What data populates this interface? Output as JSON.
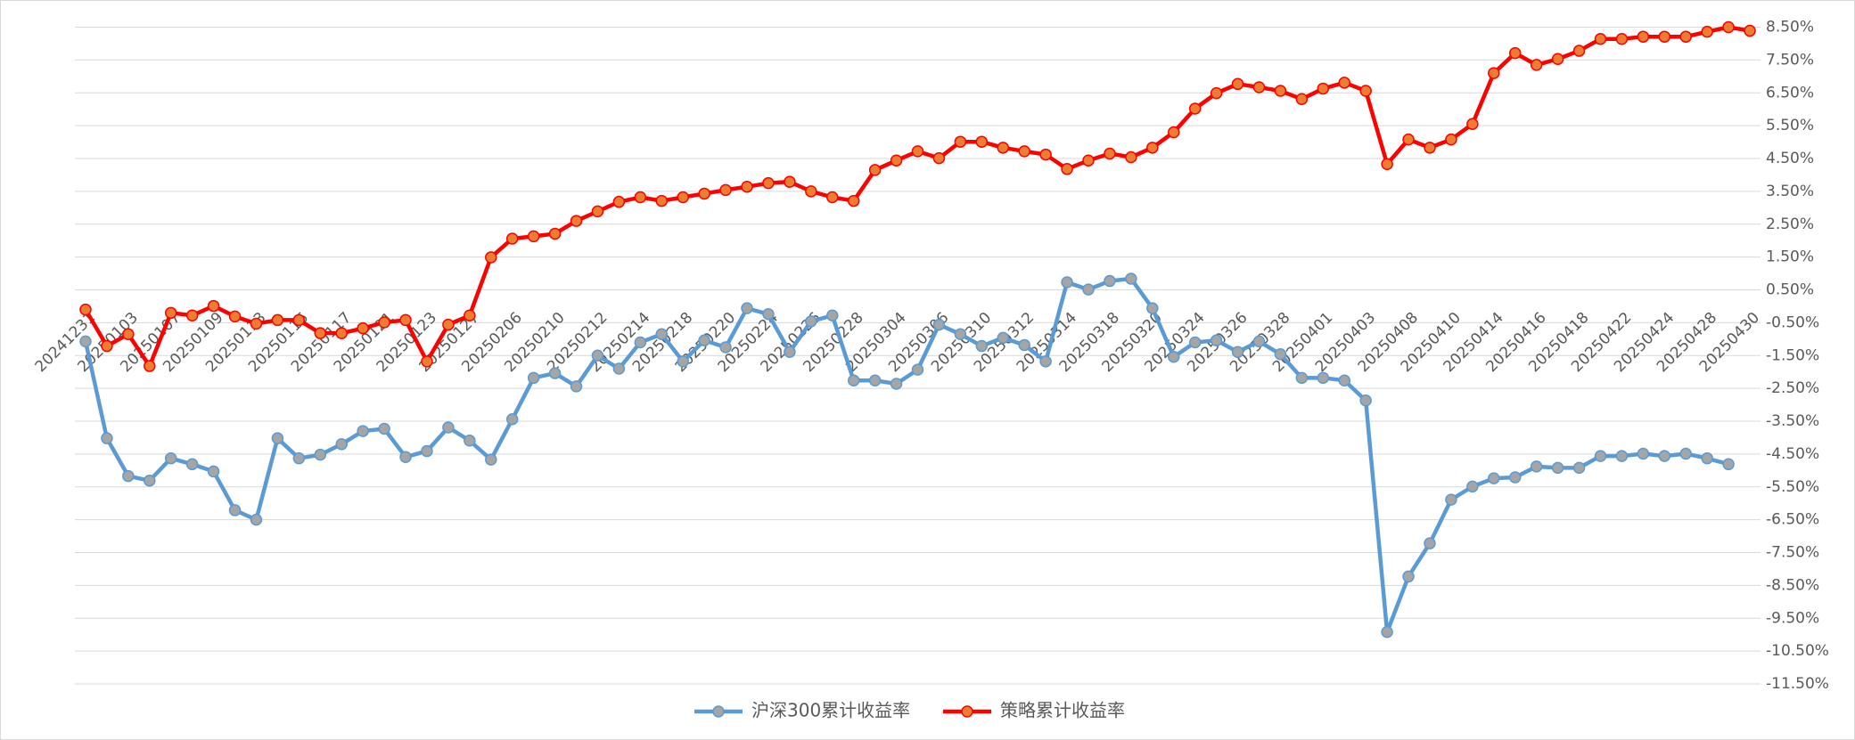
{
  "chart_data": {
    "type": "line",
    "categories": [
      "20241231",
      null,
      "20250103",
      null,
      "20250107",
      null,
      "20250109",
      null,
      "20250113",
      null,
      "20250115",
      null,
      "20250117",
      null,
      "20250121",
      null,
      "20250123",
      null,
      "20250127",
      null,
      "20250206",
      null,
      "20250210",
      null,
      "20250212",
      null,
      "20250214",
      null,
      "20250218",
      null,
      "20250220",
      null,
      "20250224",
      null,
      "20250226",
      null,
      "20250228",
      null,
      "20250304",
      null,
      "20250306",
      null,
      "20250310",
      null,
      "20250312",
      null,
      "20250314",
      null,
      "20250318",
      null,
      "20250320",
      null,
      "20250324",
      null,
      "20250326",
      null,
      "20250328",
      null,
      "20250401",
      null,
      "20250403",
      null,
      "20250408",
      null,
      "20250410",
      null,
      "20250414",
      null,
      "20250416",
      null,
      "20250418",
      null,
      "20250422",
      null,
      "20250424",
      null,
      "20250428",
      null,
      "20250430"
    ],
    "series": [
      {
        "name": "沪深300累计收益率",
        "color": "#5b9bd5",
        "marker_color": "#a5a5a5",
        "values": [
          -1.07,
          -4.02,
          -5.17,
          -5.31,
          -4.63,
          -4.81,
          -5.03,
          -6.21,
          -6.5,
          -4.02,
          -4.63,
          -4.52,
          -4.2,
          -3.8,
          -3.73,
          -4.59,
          -4.41,
          -3.69,
          -4.09,
          -4.67,
          -3.44,
          -2.18,
          -2.04,
          -2.44,
          -1.5,
          -1.9,
          -1.1,
          -0.85,
          -1.68,
          -1.04,
          -1.25,
          -0.06,
          -0.24,
          -1.39,
          -0.46,
          -0.28,
          -2.26,
          -2.26,
          -2.36,
          -1.93,
          -0.56,
          -0.85,
          -1.21,
          -0.96,
          -1.18,
          -1.68,
          0.73,
          0.51,
          0.77,
          0.84,
          -0.06,
          -1.54,
          -1.1,
          -1.04,
          -1.39,
          -1.07,
          -1.46,
          -2.18,
          -2.18,
          -2.26,
          -2.87,
          -9.92,
          -8.23,
          -7.22,
          -5.89,
          -5.49,
          -5.24,
          -5.21,
          -4.88,
          -4.92,
          -4.92,
          -4.56,
          -4.56,
          -4.49,
          -4.56,
          -4.49,
          -4.63,
          -4.81,
          null
        ]
      },
      {
        "name": "策略累计收益率",
        "color": "#ff0000",
        "marker_color": "#ed7d31",
        "values": [
          -0.1,
          -1.21,
          -0.85,
          -1.82,
          -0.2,
          -0.28,
          0.01,
          -0.31,
          -0.53,
          -0.42,
          -0.42,
          -0.82,
          -0.82,
          -0.67,
          -0.49,
          -0.42,
          -1.68,
          -0.56,
          -0.28,
          1.49,
          2.06,
          2.13,
          2.21,
          2.6,
          2.89,
          3.18,
          3.32,
          3.21,
          3.32,
          3.43,
          3.54,
          3.64,
          3.75,
          3.79,
          3.5,
          3.32,
          3.21,
          4.15,
          4.44,
          4.72,
          4.51,
          5.01,
          5.01,
          4.83,
          4.72,
          4.62,
          4.18,
          4.44,
          4.65,
          4.54,
          4.83,
          5.3,
          6.02,
          6.49,
          6.77,
          6.67,
          6.56,
          6.31,
          6.63,
          6.81,
          6.56,
          4.33,
          5.08,
          4.83,
          5.08,
          5.55,
          7.1,
          7.71,
          7.35,
          7.53,
          7.78,
          8.14,
          8.14,
          8.21,
          8.21,
          8.21,
          8.36,
          8.5,
          8.39
        ]
      }
    ],
    "ylim": [
      -11.5,
      8.5
    ],
    "yticks": [
      {
        "value": 8.5,
        "label": "8.50%"
      },
      {
        "value": 7.5,
        "label": "7.50%"
      },
      {
        "value": 6.5,
        "label": "6.50%"
      },
      {
        "value": 5.5,
        "label": "5.50%"
      },
      {
        "value": 4.5,
        "label": "4.50%"
      },
      {
        "value": 3.5,
        "label": "3.50%"
      },
      {
        "value": 2.5,
        "label": "2.50%"
      },
      {
        "value": 1.5,
        "label": "1.50%"
      },
      {
        "value": 0.5,
        "label": "0.50%"
      },
      {
        "value": -0.5,
        "label": "-0.50%"
      },
      {
        "value": -1.5,
        "label": "-1.50%"
      },
      {
        "value": -2.5,
        "label": "-2.50%"
      },
      {
        "value": -3.5,
        "label": "-3.50%"
      },
      {
        "value": -4.5,
        "label": "-4.50%"
      },
      {
        "value": -5.5,
        "label": "-5.50%"
      },
      {
        "value": -6.5,
        "label": "-6.50%"
      },
      {
        "value": -7.5,
        "label": "-7.50%"
      },
      {
        "value": -8.5,
        "label": "-8.50%"
      },
      {
        "value": -9.5,
        "label": "-9.50%"
      },
      {
        "value": -10.5,
        "label": "-10.50%"
      },
      {
        "value": -11.5,
        "label": "-11.50%"
      }
    ],
    "grid": true,
    "legend": "bottom"
  }
}
